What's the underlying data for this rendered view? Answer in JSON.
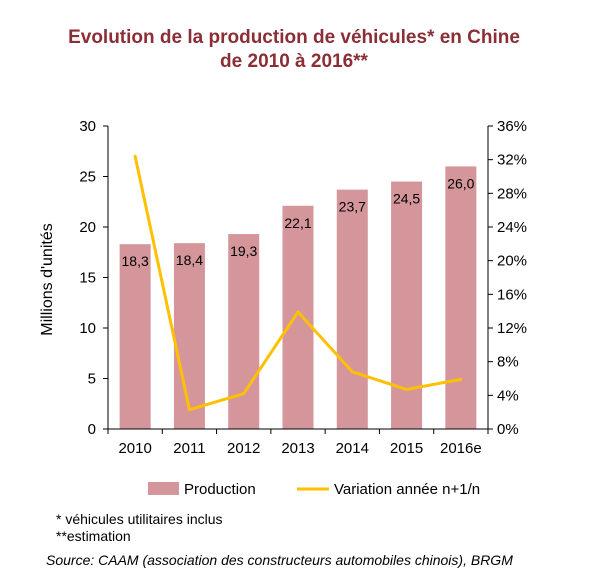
{
  "title": {
    "line1": "Evolution de la production de véhicules* en Chine",
    "line2": "de 2010 à 2016**"
  },
  "colors": {
    "title": "#8B2E35",
    "bars": "#D4969B",
    "line": "#FFC000",
    "axis": "#000000"
  },
  "chart_data": {
    "type": "bar",
    "title": "Evolution de la production de véhicules* en Chine de 2010 à 2016**",
    "categories": [
      "2010",
      "2011",
      "2012",
      "2013",
      "2014",
      "2015",
      "2016e"
    ],
    "ylabel": "Millions d'unités",
    "ylim": [
      0,
      30
    ],
    "y_ticks": [
      "0",
      "5",
      "10",
      "15",
      "20",
      "25",
      "30"
    ],
    "y2lim": [
      0,
      36
    ],
    "y2_ticks": [
      "0%",
      "4%",
      "8%",
      "12%",
      "16%",
      "20%",
      "24%",
      "28%",
      "32%",
      "36%"
    ],
    "series": [
      {
        "name": "Production",
        "type": "bar",
        "axis": "left",
        "values": [
          18.3,
          18.4,
          19.3,
          22.1,
          23.7,
          24.5,
          26.0
        ],
        "labels": [
          "18,3",
          "18,4",
          "19,3",
          "22,1",
          "23,7",
          "24,5",
          "26,0"
        ]
      },
      {
        "name": "Variation année n+1/n",
        "type": "line",
        "axis": "right",
        "values": [
          32.4,
          2.3,
          4.2,
          13.9,
          6.8,
          4.7,
          5.9
        ]
      }
    ],
    "legend": [
      "Production",
      "Variation année n+1/n"
    ],
    "legend_position": "bottom",
    "grid": false
  },
  "notes": {
    "footnote1": "* véhicules  utilitaires inclus",
    "footnote2": "**estimation",
    "source": "Source: CAAM (association des constructeurs automobiles chinois), BRGM"
  }
}
